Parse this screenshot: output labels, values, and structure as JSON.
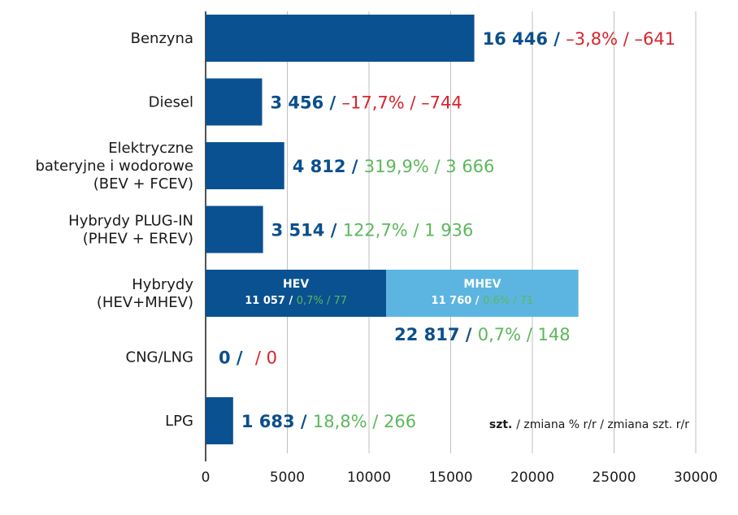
{
  "chart_data": {
    "type": "bar",
    "orientation": "horizontal",
    "unit_note": {
      "bold": "szt.",
      "rest": "/ zmiana % r/r / zmiana szt. r/r"
    },
    "xlim": [
      0,
      30000
    ],
    "xticks": [
      "0",
      "5000",
      "10000",
      "15000",
      "20000",
      "25000",
      "30000"
    ],
    "grid": true,
    "colors": {
      "bar": "#0a5191",
      "bar_light": "#5bb5e0",
      "value": "#0a4f8c",
      "negative": "#d9242c",
      "positive": "#5cb85c",
      "grid": "#bfbfbf",
      "axis": "#1a1a1a"
    },
    "categories": [
      {
        "label_lines": [
          "Benzyna"
        ],
        "value": 16446,
        "value_text": "16 446",
        "pct_text": "–3,8%",
        "diff_text": "–641",
        "trend": "negative"
      },
      {
        "label_lines": [
          "Diesel"
        ],
        "value": 3456,
        "value_text": "3 456",
        "pct_text": "–17,7%",
        "diff_text": "–744",
        "trend": "negative"
      },
      {
        "label_lines": [
          "Elektryczne",
          "bateryjne i wodorowe",
          "(BEV + FCEV)"
        ],
        "value": 4812,
        "value_text": "4 812",
        "pct_text": "319,9%",
        "diff_text": "3 666",
        "trend": "positive"
      },
      {
        "label_lines": [
          "Hybrydy PLUG-IN",
          "(PHEV + EREV)"
        ],
        "value": 3514,
        "value_text": "3 514",
        "pct_text": "122,7%",
        "diff_text": "1 936",
        "trend": "positive"
      },
      {
        "label_lines": [
          "Hybrydy",
          "(HEV+MHEV)"
        ],
        "value": 22817,
        "value_text": "22 817",
        "pct_text": "0,7%",
        "diff_text": "148",
        "trend": "positive",
        "segments": [
          {
            "name": "HEV",
            "value": 11057,
            "value_text": "11 057",
            "pct_text": "0,7%",
            "diff_text": "77"
          },
          {
            "name": "MHEV",
            "value": 11760,
            "value_text": "11 760",
            "pct_text": "0,6%",
            "diff_text": "71"
          }
        ]
      },
      {
        "label_lines": [
          "CNG/LNG"
        ],
        "value": 0,
        "value_text": "0",
        "pct_text": "",
        "diff_text": "0",
        "trend": "negative"
      },
      {
        "label_lines": [
          "LPG"
        ],
        "value": 1683,
        "value_text": "1 683",
        "pct_text": "18,8%",
        "diff_text": "266",
        "trend": "positive"
      }
    ]
  }
}
